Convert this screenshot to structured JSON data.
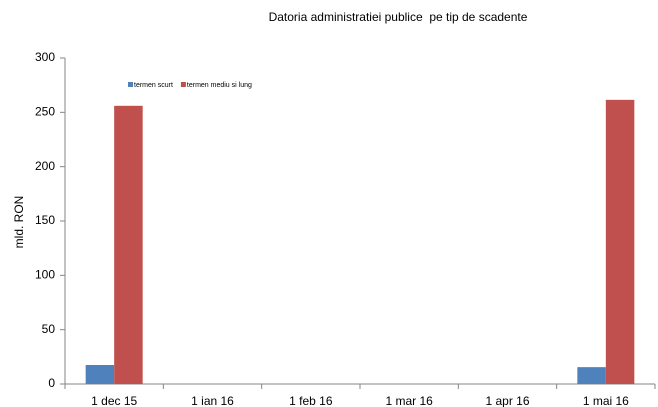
{
  "chart_data": {
    "type": "bar",
    "title": "Datoria administratiei publice  pe tip de scadente",
    "y_label": "mld. RON",
    "categories": [
      "1 dec 15",
      "1 ian 16",
      "1 feb 16",
      "1 mar 16",
      "1 apr 16",
      "1 mai 16"
    ],
    "series": [
      {
        "name": "termen scurt",
        "color": "#4f81bd",
        "values": [
          17.5,
          null,
          null,
          null,
          null,
          15.5
        ]
      },
      {
        "name": "termen mediu si lung",
        "color": "#c0504d",
        "values": [
          256,
          null,
          null,
          null,
          null,
          261.5
        ]
      }
    ],
    "ylim": [
      0,
      300
    ],
    "yticks": [
      0,
      50,
      100,
      150,
      200,
      250,
      300
    ],
    "grid": false
  }
}
